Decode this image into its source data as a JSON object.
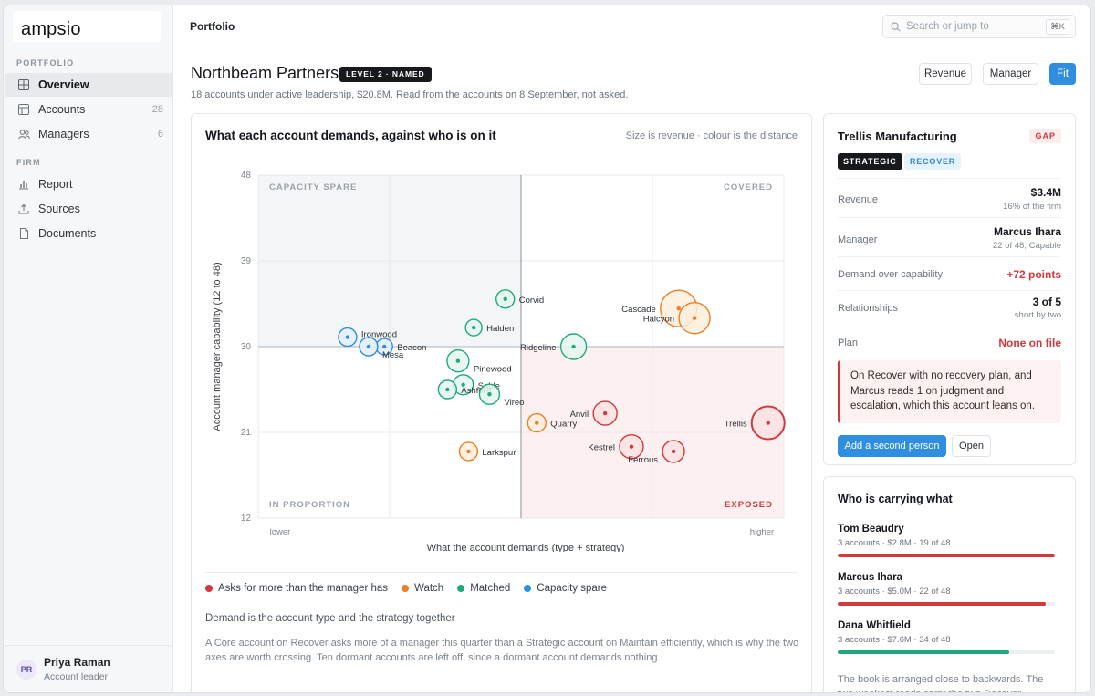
{
  "brand": "ampsio",
  "sidebar": {
    "section_portfolio": "PORTFOLIO",
    "section_firm": "FIRM",
    "items": [
      {
        "label": "Overview",
        "count": ""
      },
      {
        "label": "Accounts",
        "count": "28"
      },
      {
        "label": "Managers",
        "count": "6"
      },
      {
        "label": "Report",
        "count": ""
      },
      {
        "label": "Sources",
        "count": ""
      },
      {
        "label": "Documents",
        "count": ""
      }
    ],
    "user": {
      "initials": "PR",
      "name": "Priya Raman",
      "role": "Account leader"
    }
  },
  "topbar": {
    "breadcrumb": "Portfolio",
    "search_placeholder": "Search or jump to",
    "search_shortcut": "⌘K"
  },
  "header": {
    "title": "Northbeam Partners",
    "level_badge": "LEVEL 2 · NAMED",
    "subtitle": "18 accounts under active leadership, $20.8M. Read from the accounts on 8 September, not asked.",
    "segments": [
      "Revenue",
      "Manager",
      "Fit"
    ],
    "active_segment": "Fit"
  },
  "chart_card": {
    "title": "What each account demands, against who is on it",
    "note": "Size is revenue · colour is the distance",
    "legend": [
      {
        "label": "Asks for more than the manager has",
        "color": "#d2383d"
      },
      {
        "label": "Watch",
        "color": "#ef7d22"
      },
      {
        "label": "Matched",
        "color": "#1fa97a"
      },
      {
        "label": "Capacity spare",
        "color": "#2f8ee0"
      }
    ],
    "explain_title": "Demand is the account type and the strategy together",
    "explain_body": "A Core account on Recover asks more of a manager this quarter than a Strategic account on Maintain efficiently, which is why the two axes are worth crossing. Ten dormant accounts are left off, since a dormant account demands nothing."
  },
  "chart_data": {
    "type": "scatter",
    "xlabel": "What the account demands (type + strategy)",
    "ylabel": "Account manager capability (12 to 48)",
    "x_tick_labels": [
      "lower",
      "higher"
    ],
    "xlim": [
      0,
      100
    ],
    "ylim": [
      12,
      48
    ],
    "yticks": [
      12,
      21,
      30,
      39,
      48
    ],
    "quadrant_labels": {
      "top_left": "CAPACITY SPARE",
      "top_right": "COVERED",
      "bottom_left": "IN PROPORTION",
      "bottom_right": "EXPOSED"
    },
    "grid": true,
    "colors": {
      "red": "#d2383d",
      "orange": "#ef7d22",
      "green": "#1fa97a",
      "blue": "#2f8ee0"
    },
    "points": [
      {
        "name": "Ironwood",
        "x": 17,
        "y": 31,
        "r": 10,
        "status": "blue",
        "label_side": "right-up"
      },
      {
        "name": "Beacon",
        "x": 24,
        "y": 30,
        "r": 9,
        "status": "blue",
        "label_side": "right"
      },
      {
        "name": "Mesa",
        "x": 21,
        "y": 30,
        "r": 10,
        "status": "blue",
        "label_side": "right-down"
      },
      {
        "name": "Corvid",
        "x": 47,
        "y": 35,
        "r": 10,
        "status": "green",
        "label_side": "right"
      },
      {
        "name": "Halden",
        "x": 41,
        "y": 32,
        "r": 9,
        "status": "green",
        "label_side": "right"
      },
      {
        "name": "Ridgeline",
        "x": 60,
        "y": 30,
        "r": 14,
        "status": "green",
        "label_side": "left"
      },
      {
        "name": "Pinewood",
        "x": 38,
        "y": 28.5,
        "r": 12,
        "status": "green",
        "label_side": "right-down"
      },
      {
        "name": "Sable",
        "x": 39,
        "y": 26,
        "r": 11,
        "status": "green",
        "label_side": "right"
      },
      {
        "name": "Ashford",
        "x": 36,
        "y": 25.5,
        "r": 10,
        "status": "green",
        "label_side": "right"
      },
      {
        "name": "Vireo",
        "x": 44,
        "y": 25,
        "r": 11,
        "status": "green",
        "label_side": "right-down"
      },
      {
        "name": "Cascade",
        "x": 80,
        "y": 34,
        "r": 20,
        "status": "orange",
        "label_side": "left"
      },
      {
        "name": "Halcyon",
        "x": 83,
        "y": 33,
        "r": 17,
        "status": "orange",
        "label_side": "left"
      },
      {
        "name": "Quarry",
        "x": 53,
        "y": 22,
        "r": 10,
        "status": "orange",
        "label_side": "right"
      },
      {
        "name": "Larkspur",
        "x": 40,
        "y": 19,
        "r": 10,
        "status": "orange",
        "label_side": "right"
      },
      {
        "name": "Anvil",
        "x": 66,
        "y": 23,
        "r": 13,
        "status": "red",
        "label_side": "left"
      },
      {
        "name": "Kestrel",
        "x": 71,
        "y": 19.5,
        "r": 13,
        "status": "red",
        "label_side": "left"
      },
      {
        "name": "Ferrous",
        "x": 79,
        "y": 19,
        "r": 12,
        "status": "red",
        "label_side": "left-down"
      },
      {
        "name": "Trellis",
        "x": 97,
        "y": 22,
        "r": 18,
        "status": "red",
        "label_side": "left"
      }
    ]
  },
  "detail": {
    "name": "Trellis Manufacturing",
    "status_badge": "GAP",
    "tags": [
      "STRATEGIC",
      "RECOVER"
    ],
    "rows": [
      {
        "label": "Revenue",
        "value": "$3.4M",
        "sub": "16% of the firm"
      },
      {
        "label": "Manager",
        "value": "Marcus Ihara",
        "sub": "22 of 48, Capable"
      },
      {
        "label": "Demand over capability",
        "value": "+72 points",
        "sub": ""
      },
      {
        "label": "Relationships",
        "value": "3 of 5",
        "sub": "short by two"
      },
      {
        "label": "Plan",
        "value": "None on file",
        "sub": ""
      }
    ],
    "alert": "On Recover with no recovery plan, and Marcus reads 1 on judgment and escalation, which this account leans on.",
    "primary_button": "Add a second person",
    "secondary_button": "Open"
  },
  "carrying": {
    "title": "Who is carrying what",
    "people": [
      {
        "name": "Tom Beaudry",
        "meta": "3 accounts · $2.8M · 19 of 48",
        "load": 1.0,
        "color": "#d2383d"
      },
      {
        "name": "Marcus Ihara",
        "meta": "3 accounts · $5.0M · 22 of 48",
        "load": 0.96,
        "color": "#d2383d"
      },
      {
        "name": "Dana Whitfield",
        "meta": "3 accounts · $7.6M · 34 of 48",
        "load": 0.79,
        "color": "#1fa97a"
      }
    ],
    "note": "The book is arranged close to backwards. The two weakest reads carry the two Recover accounts."
  }
}
